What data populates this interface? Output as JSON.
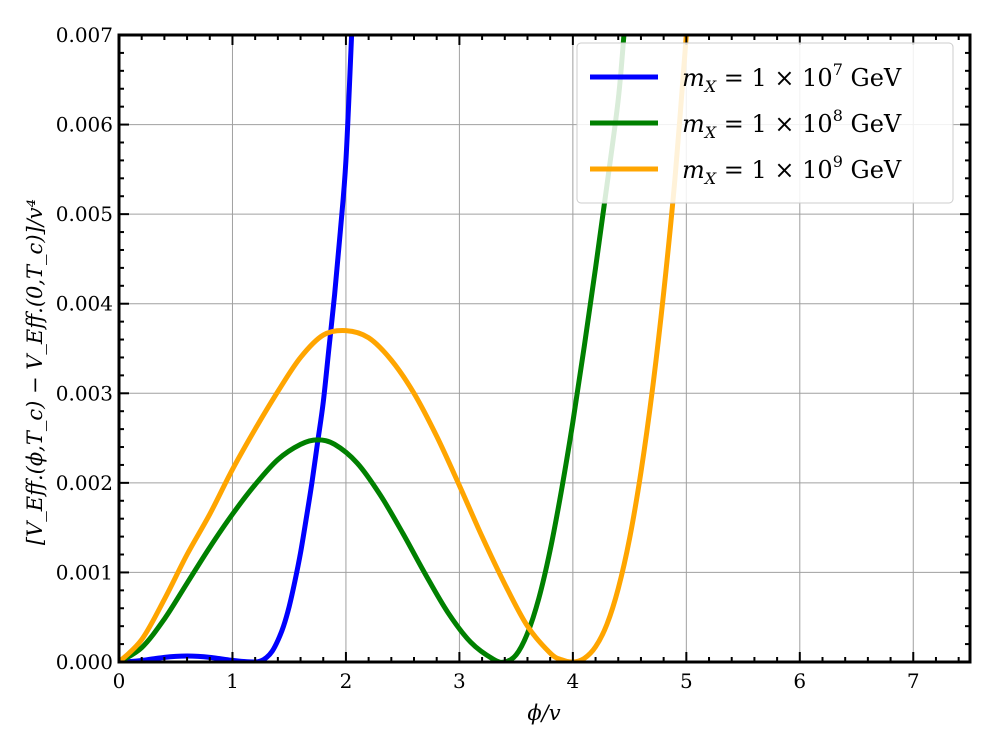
{
  "chart_data": {
    "type": "line",
    "xlabel": "ϕ/v",
    "ylabel": "[V_Eff.(ϕ,T_c) − V_Eff.(0,T_c)]/v⁴",
    "xlim": [
      0,
      7.5
    ],
    "ylim": [
      0,
      0.007
    ],
    "x_ticks": [
      "0",
      "1",
      "2",
      "3",
      "4",
      "5",
      "6",
      "7"
    ],
    "y_ticks": [
      "0.000",
      "0.001",
      "0.002",
      "0.003",
      "0.004",
      "0.005",
      "0.006",
      "0.007"
    ],
    "grid": true,
    "legend_position": "top-right",
    "series": [
      {
        "name": "m_X = 1 × 10^7 GeV",
        "name_parts": {
          "m": "m",
          "sub": "X",
          "eq": " = 1 × 10",
          "exp": "7",
          "unit": " GeV"
        },
        "color": "#0000ff",
        "x": [
          0,
          0.1,
          0.2,
          0.3,
          0.4,
          0.5,
          0.6,
          0.7,
          0.8,
          0.9,
          1.0,
          1.1,
          1.2,
          1.25,
          1.3,
          1.35,
          1.4,
          1.45,
          1.5,
          1.55,
          1.6,
          1.65,
          1.7,
          1.75,
          1.8,
          1.85,
          1.9,
          1.95,
          2.0,
          2.05
        ],
        "y": [
          0,
          5e-06,
          1.7e-05,
          3.5e-05,
          5.2e-05,
          6.3e-05,
          6.7e-05,
          6.3e-05,
          5.2e-05,
          3.5e-05,
          1.8e-05,
          5e-06,
          0,
          1.2e-05,
          5e-05,
          0.00012,
          0.00024,
          0.0004,
          0.00062,
          0.0009,
          0.00122,
          0.0016,
          0.002,
          0.00245,
          0.0029,
          0.0035,
          0.0041,
          0.0048,
          0.0056,
          0.007
        ]
      },
      {
        "name": "m_X = 1 × 10^8 GeV",
        "name_parts": {
          "m": "m",
          "sub": "X",
          "eq": " = 1 × 10",
          "exp": "8",
          "unit": " GeV"
        },
        "color": "#008000",
        "x": [
          0,
          0.2,
          0.4,
          0.6,
          0.8,
          1.0,
          1.2,
          1.4,
          1.6,
          1.75,
          1.9,
          2.1,
          2.3,
          2.5,
          2.7,
          2.9,
          3.1,
          3.3,
          3.4,
          3.5,
          3.6,
          3.7,
          3.8,
          3.9,
          4.0,
          4.1,
          4.2,
          4.3,
          4.4,
          4.45
        ],
        "y": [
          0,
          0.00016,
          0.00048,
          0.00088,
          0.00128,
          0.00165,
          0.00198,
          0.00226,
          0.00243,
          0.00248,
          0.00243,
          0.00222,
          0.00187,
          0.00144,
          0.00098,
          0.00055,
          0.00022,
          3e-05,
          0,
          8e-05,
          0.00032,
          0.00071,
          0.00125,
          0.00192,
          0.00268,
          0.00352,
          0.0044,
          0.00532,
          0.00628,
          0.007
        ]
      },
      {
        "name": "m_X = 1 × 10^9 GeV",
        "name_parts": {
          "m": "m",
          "sub": "X",
          "eq": " = 1 × 10",
          "exp": "9",
          "unit": " GeV"
        },
        "color": "#ffa500",
        "x": [
          0,
          0.2,
          0.4,
          0.6,
          0.8,
          1.0,
          1.2,
          1.4,
          1.6,
          1.8,
          2.0,
          2.2,
          2.4,
          2.6,
          2.8,
          3.0,
          3.2,
          3.4,
          3.6,
          3.8,
          3.9,
          4.0,
          4.1,
          4.2,
          4.3,
          4.4,
          4.5,
          4.6,
          4.7,
          4.8,
          4.9,
          5.0
        ],
        "y": [
          0,
          0.00025,
          0.0007,
          0.0012,
          0.00165,
          0.00215,
          0.0026,
          0.00302,
          0.0034,
          0.00365,
          0.0037,
          0.00362,
          0.00337,
          0.003,
          0.00252,
          0.00197,
          0.0014,
          0.00087,
          0.0004,
          0.0001,
          2.5e-05,
          0,
          4e-05,
          0.00017,
          0.00042,
          0.00082,
          0.00138,
          0.00212,
          0.00303,
          0.00412,
          0.0054,
          0.007
        ]
      }
    ]
  }
}
